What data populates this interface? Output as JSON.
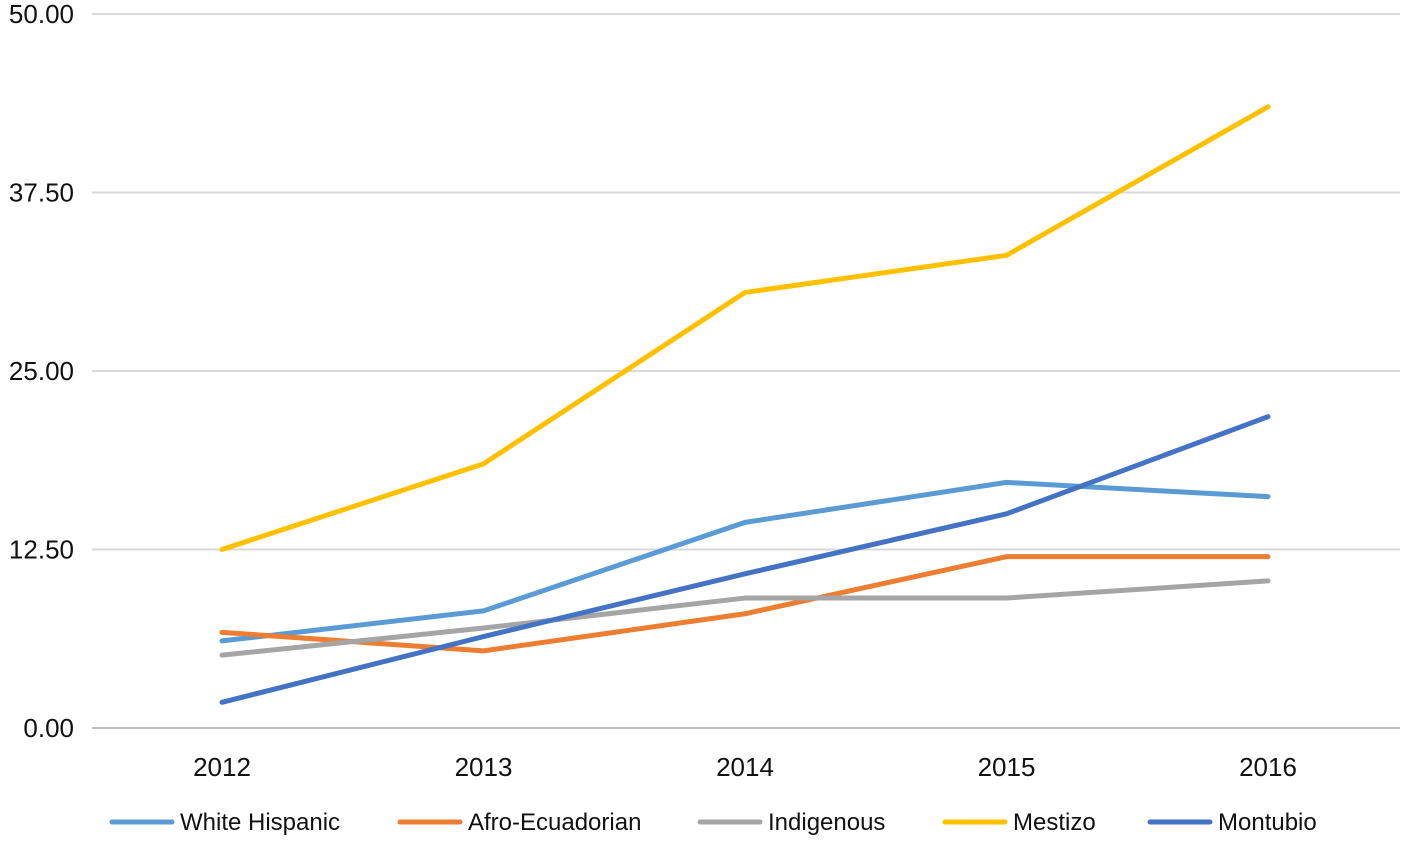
{
  "chart_data": {
    "type": "line",
    "categories": [
      "2012",
      "2013",
      "2014",
      "2015",
      "2016"
    ],
    "y_ticks": [
      "0.00",
      "12.50",
      "25.00",
      "37.50",
      "50.00"
    ],
    "ylim": [
      0,
      50
    ],
    "grid": true,
    "legend_position": "bottom",
    "series": [
      {
        "name": "White Hispanic",
        "color": "#5B9BD5",
        "values": [
          6.1,
          8.2,
          14.4,
          17.2,
          16.2
        ]
      },
      {
        "name": "Afro-Ecuadorian",
        "color": "#ED7D31",
        "values": [
          6.7,
          5.4,
          8.0,
          12.0,
          12.0
        ]
      },
      {
        "name": "Indigenous",
        "color": "#A5A5A5",
        "values": [
          5.1,
          7.0,
          9.1,
          9.1,
          10.3
        ]
      },
      {
        "name": "Mestizo",
        "color": "#FFC000",
        "values": [
          12.5,
          18.5,
          30.5,
          33.1,
          43.5
        ]
      },
      {
        "name": "Montubio",
        "color": "#4472C4",
        "values": [
          1.8,
          6.4,
          10.8,
          15.0,
          21.8
        ]
      }
    ]
  }
}
